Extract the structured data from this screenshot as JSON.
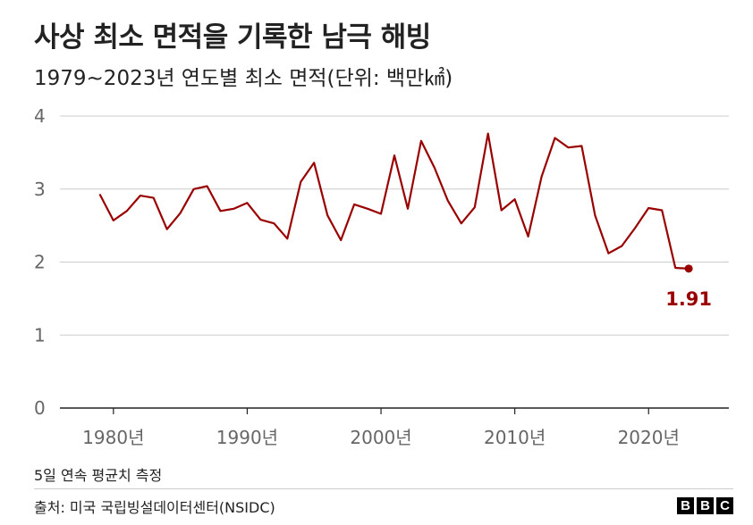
{
  "header": {
    "title": "사상 최소 면적을 기록한 남극 해빙",
    "subtitle": "1979~2023년 연도별 최소 면적(단위: 백만㎢)"
  },
  "footer": {
    "note": "5일 연속 평균치 측정",
    "source": "출처: 미국 국립빙설데이터센터(NSIDC)",
    "logo_letters": [
      "B",
      "B",
      "C"
    ]
  },
  "colors": {
    "line": "#990000",
    "grid": "#cccccc",
    "axis": "#222222",
    "tick_label": "#666666"
  },
  "chart_data": {
    "type": "line",
    "title": "사상 최소 면적을 기록한 남극 해빙",
    "subtitle": "1979~2023년 연도별 최소 면적(단위: 백만㎢)",
    "xlabel": "",
    "ylabel": "",
    "xlim": [
      1976,
      2026
    ],
    "ylim": [
      0,
      4
    ],
    "grid": true,
    "legend": "none",
    "x_ticks": [
      1980,
      1990,
      2000,
      2010,
      2020
    ],
    "x_tick_labels": [
      "1980년",
      "1990년",
      "2000년",
      "2010년",
      "2020년"
    ],
    "y_ticks": [
      0,
      1,
      2,
      3,
      4
    ],
    "y_tick_labels": [
      "0",
      "1",
      "2",
      "3",
      "4"
    ],
    "x": [
      1979,
      1980,
      1981,
      1982,
      1983,
      1984,
      1985,
      1986,
      1987,
      1988,
      1989,
      1990,
      1991,
      1992,
      1993,
      1994,
      1995,
      1996,
      1997,
      1998,
      1999,
      2000,
      2001,
      2002,
      2003,
      2004,
      2005,
      2006,
      2007,
      2008,
      2009,
      2010,
      2011,
      2012,
      2013,
      2014,
      2015,
      2016,
      2017,
      2018,
      2019,
      2020,
      2021,
      2022,
      2023
    ],
    "series": [
      {
        "values": [
          2.92,
          2.57,
          2.7,
          2.91,
          2.88,
          2.45,
          2.67,
          3.0,
          3.04,
          2.7,
          2.73,
          2.81,
          2.58,
          2.53,
          2.32,
          3.1,
          3.36,
          2.64,
          2.3,
          2.79,
          2.73,
          2.66,
          3.46,
          2.73,
          3.66,
          3.29,
          2.84,
          2.53,
          2.75,
          3.76,
          2.71,
          2.86,
          2.35,
          3.17,
          3.7,
          3.57,
          3.59,
          2.64,
          2.12,
          2.22,
          2.47,
          2.74,
          2.71,
          1.92,
          1.91
        ]
      }
    ],
    "annotations": [
      {
        "x": 2023,
        "y": 1.91,
        "text": "1.91"
      }
    ]
  }
}
